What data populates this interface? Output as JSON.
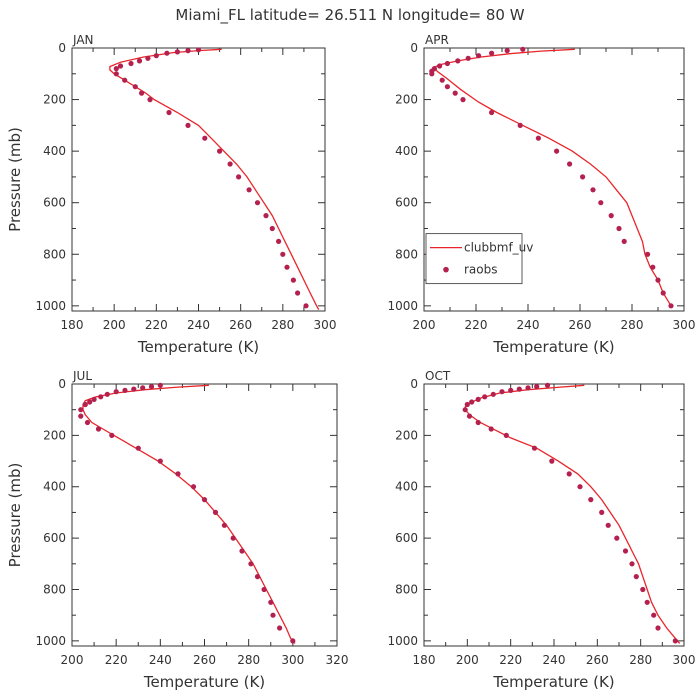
{
  "figure_title": "Miami_FL   latitude= 26.511 N longitude= 80 W",
  "colors": {
    "model": "#e8262a",
    "obs": "#b5214f",
    "axis": "#333333"
  },
  "legend": {
    "model_label": "clubbmf_uv",
    "obs_label": "raobs",
    "placement": "lower-left of APR panel"
  },
  "chart_data": [
    {
      "type": "line",
      "panel_label": "JAN",
      "xlabel": "Temperature (K)",
      "ylabel": "Pressure (mb)",
      "xlim": [
        180,
        300
      ],
      "ylim": [
        1020,
        0
      ],
      "y_inverted": true,
      "xticks": [
        180,
        200,
        220,
        240,
        260,
        280,
        300
      ],
      "yticks": [
        0,
        200,
        400,
        600,
        800,
        1000
      ],
      "legend": false,
      "series": [
        {
          "name": "clubbmf_uv",
          "kind": "line",
          "points": [
            [
              251,
              5
            ],
            [
              240,
              10
            ],
            [
              228,
              18
            ],
            [
              214,
              35
            ],
            [
              203,
              55
            ],
            [
              198,
              72
            ],
            [
              198,
              85
            ],
            [
              200,
              100
            ],
            [
              205,
              125
            ],
            [
              210,
              150
            ],
            [
              215,
              175
            ],
            [
              219,
              200
            ],
            [
              230,
              250
            ],
            [
              240,
              300
            ],
            [
              246,
              350
            ],
            [
              252,
              400
            ],
            [
              258,
              450
            ],
            [
              263,
              500
            ],
            [
              267,
              550
            ],
            [
              271,
              600
            ],
            [
              275,
              650
            ],
            [
              278,
              700
            ],
            [
              281,
              750
            ],
            [
              284,
              800
            ],
            [
              287,
              850
            ],
            [
              290,
              900
            ],
            [
              293,
              950
            ],
            [
              296,
              1000
            ],
            [
              297,
              1015
            ]
          ]
        },
        {
          "name": "raobs",
          "kind": "scatter",
          "points": [
            [
              240,
              7
            ],
            [
              235,
              10
            ],
            [
              230,
              15
            ],
            [
              225,
              20
            ],
            [
              220,
              30
            ],
            [
              216,
              40
            ],
            [
              212,
              50
            ],
            [
              208,
              60
            ],
            [
              203,
              70
            ],
            [
              201,
              80
            ],
            [
              201,
              100
            ],
            [
              205,
              125
            ],
            [
              210,
              150
            ],
            [
              213,
              175
            ],
            [
              217,
              200
            ],
            [
              226,
              250
            ],
            [
              235,
              300
            ],
            [
              243,
              350
            ],
            [
              250,
              400
            ],
            [
              255,
              450
            ],
            [
              259,
              500
            ],
            [
              264,
              550
            ],
            [
              268,
              600
            ],
            [
              272,
              650
            ],
            [
              275,
              700
            ],
            [
              278,
              750
            ],
            [
              280,
              800
            ],
            [
              282,
              850
            ],
            [
              285,
              900
            ],
            [
              287,
              950
            ],
            [
              291,
              1000
            ]
          ]
        }
      ]
    },
    {
      "type": "line",
      "panel_label": "APR",
      "xlabel": "Temperature (K)",
      "ylabel": "",
      "xlim": [
        200,
        300
      ],
      "ylim": [
        1020,
        0
      ],
      "y_inverted": true,
      "xticks": [
        200,
        220,
        240,
        260,
        280,
        300
      ],
      "yticks": [
        0,
        200,
        400,
        600,
        800,
        1000
      ],
      "legend": true,
      "series": [
        {
          "name": "clubbmf_uv",
          "kind": "line",
          "points": [
            [
              258,
              5
            ],
            [
              245,
              12
            ],
            [
              233,
              22
            ],
            [
              222,
              35
            ],
            [
              213,
              50
            ],
            [
              206,
              65
            ],
            [
              204,
              75
            ],
            [
              205,
              90
            ],
            [
              209,
              120
            ],
            [
              214,
              160
            ],
            [
              221,
              210
            ],
            [
              228,
              250
            ],
            [
              238,
              300
            ],
            [
              248,
              350
            ],
            [
              257,
              400
            ],
            [
              264,
              450
            ],
            [
              270,
              500
            ],
            [
              274,
              550
            ],
            [
              278,
              600
            ],
            [
              280,
              650
            ],
            [
              282,
              700
            ],
            [
              284,
              750
            ],
            [
              285,
              800
            ],
            [
              287,
              850
            ],
            [
              290,
              900
            ],
            [
              292,
              950
            ],
            [
              295,
              1000
            ]
          ]
        },
        {
          "name": "raobs",
          "kind": "scatter",
          "points": [
            [
              238,
              5
            ],
            [
              232,
              10
            ],
            [
              226,
              20
            ],
            [
              221,
              30
            ],
            [
              217,
              40
            ],
            [
              213,
              50
            ],
            [
              209,
              60
            ],
            [
              206,
              70
            ],
            [
              204,
              80
            ],
            [
              203,
              90
            ],
            [
              203,
              100
            ],
            [
              207,
              125
            ],
            [
              209,
              150
            ],
            [
              212,
              175
            ],
            [
              215,
              200
            ],
            [
              226,
              250
            ],
            [
              237,
              300
            ],
            [
              244,
              350
            ],
            [
              251,
              400
            ],
            [
              256,
              450
            ],
            [
              261,
              500
            ],
            [
              265,
              550
            ],
            [
              268,
              600
            ],
            [
              272,
              650
            ],
            [
              275,
              700
            ],
            [
              277,
              750
            ],
            [
              286,
              800
            ],
            [
              288,
              850
            ],
            [
              290,
              900
            ],
            [
              292,
              950
            ],
            [
              295,
              1000
            ]
          ]
        }
      ]
    },
    {
      "type": "line",
      "panel_label": "JUL",
      "xlabel": "Temperature (K)",
      "ylabel": "Pressure (mb)",
      "xlim": [
        200,
        320
      ],
      "ylim": [
        1020,
        0
      ],
      "y_inverted": true,
      "xticks": [
        200,
        220,
        240,
        260,
        280,
        300,
        320
      ],
      "yticks": [
        0,
        200,
        400,
        600,
        800,
        1000
      ],
      "legend": false,
      "series": [
        {
          "name": "clubbmf_uv",
          "kind": "line",
          "points": [
            [
              262,
              5
            ],
            [
              248,
              12
            ],
            [
              233,
              22
            ],
            [
              220,
              35
            ],
            [
              211,
              50
            ],
            [
              206,
              65
            ],
            [
              205,
              80
            ],
            [
              205,
              100
            ],
            [
              206,
              120
            ],
            [
              209,
              150
            ],
            [
              214,
              175
            ],
            [
              219,
              200
            ],
            [
              229,
              250
            ],
            [
              239,
              300
            ],
            [
              247,
              350
            ],
            [
              254,
              400
            ],
            [
              260,
              450
            ],
            [
              265,
              500
            ],
            [
              270,
              550
            ],
            [
              274,
              600
            ],
            [
              278,
              650
            ],
            [
              282,
              700
            ],
            [
              285,
              750
            ],
            [
              288,
              800
            ],
            [
              291,
              850
            ],
            [
              294,
              900
            ],
            [
              297,
              950
            ],
            [
              299,
              990
            ],
            [
              301,
              1010
            ]
          ]
        },
        {
          "name": "raobs",
          "kind": "scatter",
          "points": [
            [
              240,
              5
            ],
            [
              236,
              10
            ],
            [
              232,
              15
            ],
            [
              228,
              20
            ],
            [
              224,
              25
            ],
            [
              220,
              30
            ],
            [
              216,
              40
            ],
            [
              213,
              50
            ],
            [
              210,
              60
            ],
            [
              208,
              70
            ],
            [
              206,
              80
            ],
            [
              204,
              100
            ],
            [
              204,
              125
            ],
            [
              207,
              150
            ],
            [
              212,
              175
            ],
            [
              218,
              200
            ],
            [
              230,
              250
            ],
            [
              240,
              300
            ],
            [
              248,
              350
            ],
            [
              255,
              400
            ],
            [
              260,
              450
            ],
            [
              265,
              500
            ],
            [
              269,
              550
            ],
            [
              273,
              600
            ],
            [
              277,
              650
            ],
            [
              281,
              700
            ],
            [
              284,
              750
            ],
            [
              287,
              800
            ],
            [
              290,
              850
            ],
            [
              291,
              900
            ],
            [
              294,
              950
            ],
            [
              300,
              1000
            ]
          ]
        }
      ]
    },
    {
      "type": "line",
      "panel_label": "OCT",
      "xlabel": "Temperature (K)",
      "ylabel": "",
      "xlim": [
        180,
        300
      ],
      "ylim": [
        1020,
        0
      ],
      "y_inverted": true,
      "xticks": [
        180,
        200,
        220,
        240,
        260,
        280,
        300
      ],
      "yticks": [
        0,
        200,
        400,
        600,
        800,
        1000
      ],
      "legend": false,
      "series": [
        {
          "name": "clubbmf_uv",
          "kind": "line",
          "points": [
            [
              254,
              5
            ],
            [
              243,
              12
            ],
            [
              228,
              22
            ],
            [
              215,
              35
            ],
            [
              206,
              55
            ],
            [
              201,
              75
            ],
            [
              199,
              90
            ],
            [
              199,
              100
            ],
            [
              201,
              120
            ],
            [
              206,
              150
            ],
            [
              213,
              180
            ],
            [
              220,
              210
            ],
            [
              232,
              250
            ],
            [
              242,
              300
            ],
            [
              251,
              350
            ],
            [
              257,
              400
            ],
            [
              262,
              450
            ],
            [
              266,
              500
            ],
            [
              270,
              550
            ],
            [
              273,
              600
            ],
            [
              276,
              650
            ],
            [
              279,
              700
            ],
            [
              281,
              750
            ],
            [
              283,
              800
            ],
            [
              285,
              850
            ],
            [
              288,
              900
            ],
            [
              292,
              950
            ],
            [
              296,
              990
            ],
            [
              298,
              1010
            ]
          ]
        },
        {
          "name": "raobs",
          "kind": "scatter",
          "points": [
            [
              237,
              5
            ],
            [
              232,
              10
            ],
            [
              228,
              15
            ],
            [
              224,
              20
            ],
            [
              220,
              25
            ],
            [
              216,
              30
            ],
            [
              212,
              40
            ],
            [
              208,
              50
            ],
            [
              205,
              60
            ],
            [
              202,
              70
            ],
            [
              200,
              80
            ],
            [
              199,
              100
            ],
            [
              201,
              125
            ],
            [
              205,
              150
            ],
            [
              211,
              175
            ],
            [
              218,
              200
            ],
            [
              231,
              250
            ],
            [
              239,
              300
            ],
            [
              247,
              350
            ],
            [
              252,
              400
            ],
            [
              257,
              450
            ],
            [
              262,
              500
            ],
            [
              265,
              550
            ],
            [
              269,
              600
            ],
            [
              273,
              650
            ],
            [
              276,
              700
            ],
            [
              278,
              750
            ],
            [
              281,
              800
            ],
            [
              283,
              850
            ],
            [
              286,
              900
            ],
            [
              288,
              950
            ],
            [
              296,
              1000
            ]
          ]
        }
      ]
    }
  ]
}
